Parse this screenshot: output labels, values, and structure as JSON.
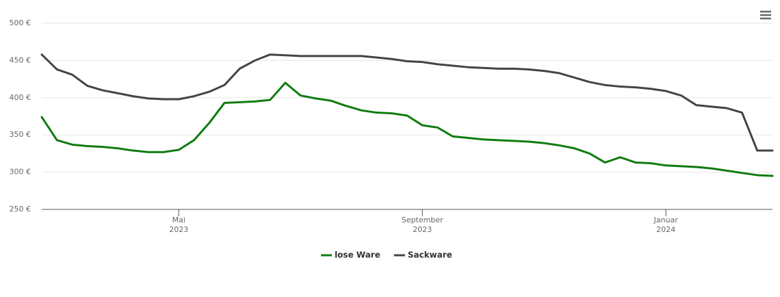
{
  "chart_data": {
    "type": "line",
    "categories": [
      null,
      null,
      null,
      null,
      null,
      null,
      null,
      null,
      null,
      "Mai 2023",
      null,
      null,
      null,
      null,
      null,
      null,
      null,
      null,
      null,
      null,
      null,
      null,
      null,
      null,
      null,
      "September 2023",
      null,
      null,
      null,
      null,
      null,
      null,
      null,
      null,
      null,
      null,
      null,
      null,
      null,
      null,
      null,
      "Januar 2024",
      null,
      null,
      null,
      null,
      null,
      null,
      null
    ],
    "series": [
      {
        "name": "lose Ware",
        "color": "#0f7b0f",
        "values": [
          374,
          343,
          337,
          335,
          334,
          332,
          329,
          327,
          327,
          330,
          343,
          366,
          393,
          394,
          395,
          397,
          420,
          403,
          399,
          396,
          389,
          383,
          380,
          379,
          376,
          363,
          360,
          348,
          346,
          344,
          343,
          342,
          341,
          339,
          336,
          332,
          325,
          313,
          320,
          313,
          312,
          309,
          308,
          307,
          305,
          302,
          299,
          296,
          295
        ]
      },
      {
        "name": "Sackware",
        "color": "#444444",
        "values": [
          458,
          438,
          431,
          416,
          410,
          406,
          402,
          399,
          398,
          398,
          402,
          408,
          417,
          439,
          450,
          458,
          457,
          456,
          456,
          456,
          456,
          456,
          454,
          452,
          449,
          448,
          445,
          443,
          441,
          440,
          439,
          439,
          438,
          436,
          433,
          427,
          421,
          417,
          415,
          414,
          412,
          409,
          403,
          390,
          388,
          386,
          380,
          329,
          329
        ]
      }
    ],
    "ylim": [
      250,
      500
    ],
    "yticks": [
      {
        "value": 250,
        "label": "250 €"
      },
      {
        "value": 300,
        "label": "300 €"
      },
      {
        "value": 350,
        "label": "350 €"
      },
      {
        "value": 400,
        "label": "400 €"
      },
      {
        "value": 450,
        "label": "450 €"
      },
      {
        "value": 500,
        "label": "500 €"
      }
    ],
    "grid": true,
    "legend": "bottom"
  }
}
